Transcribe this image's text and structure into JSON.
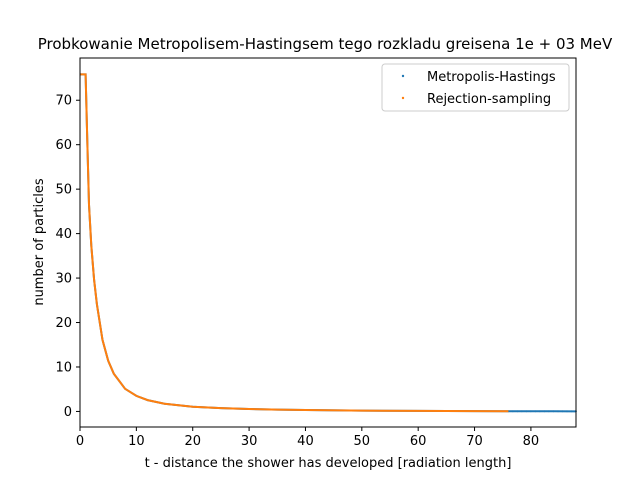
{
  "chart_data": {
    "type": "scatter",
    "title": "Probkowanie Metropolisem-Hastingsem tego rozkladu greisena 1e + 03 MeV",
    "xlabel": "t - distance the shower has developed [radiation length]",
    "ylabel": "number of particles",
    "xlim": [
      0,
      88
    ],
    "ylim": [
      -3.5,
      79.5
    ],
    "xticks": [
      "0",
      "10",
      "20",
      "30",
      "40",
      "50",
      "60",
      "70",
      "80"
    ],
    "yticks": [
      "0",
      "10",
      "20",
      "30",
      "40",
      "50",
      "60",
      "70"
    ],
    "grid": false,
    "legend_position": "top-right",
    "series": [
      {
        "name": "Metropolis-Hastings",
        "color": "#1f77b4",
        "x_range": [
          0,
          88
        ],
        "points": [
          [
            0,
            75.8
          ],
          [
            0.5,
            75.8
          ],
          [
            1.0,
            75.8
          ],
          [
            1.3,
            60.8
          ],
          [
            1.6,
            46.5
          ],
          [
            2,
            37.3
          ],
          [
            2.5,
            29.6
          ],
          [
            3,
            24.1
          ],
          [
            4,
            16.1
          ],
          [
            5,
            11.4
          ],
          [
            6,
            8.5
          ],
          [
            8,
            5.1
          ],
          [
            10,
            3.5
          ],
          [
            12,
            2.55
          ],
          [
            15,
            1.75
          ],
          [
            20,
            1.05
          ],
          [
            25,
            0.75
          ],
          [
            30,
            0.55
          ],
          [
            35,
            0.42
          ],
          [
            40,
            0.33
          ],
          [
            50,
            0.2
          ],
          [
            60,
            0.12
          ],
          [
            70,
            0.07
          ],
          [
            76,
            0.05
          ],
          [
            80,
            0.04
          ],
          [
            84,
            0.03
          ],
          [
            88,
            0.02
          ]
        ]
      },
      {
        "name": "Rejection-sampling",
        "color": "#ff7f0e",
        "x_range": [
          0,
          76
        ],
        "points": [
          [
            0,
            75.8
          ],
          [
            0.5,
            75.8
          ],
          [
            1.0,
            75.8
          ],
          [
            1.3,
            60.8
          ],
          [
            1.6,
            46.5
          ],
          [
            2,
            37.3
          ],
          [
            2.5,
            29.6
          ],
          [
            3,
            24.1
          ],
          [
            4,
            16.1
          ],
          [
            5,
            11.4
          ],
          [
            6,
            8.5
          ],
          [
            8,
            5.1
          ],
          [
            10,
            3.5
          ],
          [
            12,
            2.55
          ],
          [
            15,
            1.75
          ],
          [
            20,
            1.05
          ],
          [
            25,
            0.75
          ],
          [
            30,
            0.55
          ],
          [
            35,
            0.42
          ],
          [
            40,
            0.33
          ],
          [
            50,
            0.2
          ],
          [
            60,
            0.12
          ],
          [
            70,
            0.07
          ],
          [
            76,
            0.05
          ]
        ]
      }
    ]
  }
}
